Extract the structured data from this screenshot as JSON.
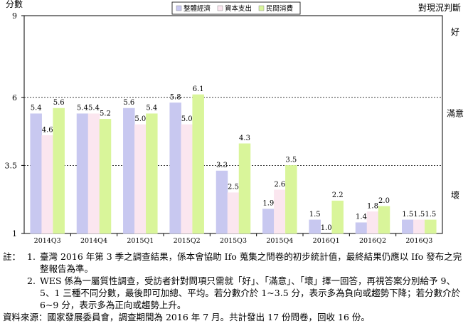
{
  "chart_data": {
    "type": "bar",
    "ylabel": "分數",
    "right_label": "對現況判斷",
    "ylim": [
      1,
      9
    ],
    "yticks": [
      1,
      3.5,
      6,
      9
    ],
    "reference_lines": [
      3.5,
      6
    ],
    "right_axis_labels": [
      {
        "y": 8.4,
        "text": "好"
      },
      {
        "y": 5.4,
        "text": "滿意"
      },
      {
        "y": 2.4,
        "text": "壞"
      }
    ],
    "categories": [
      "2014Q3",
      "2014Q4",
      "2015Q1",
      "2015Q2",
      "2015Q3",
      "2015Q4",
      "2016Q1",
      "2016Q2",
      "2016Q3"
    ],
    "legend_position": "top-center",
    "series": [
      {
        "name": "整體經濟",
        "color": "#c8c8f0",
        "values": [
          5.4,
          5.4,
          5.6,
          5.8,
          3.3,
          1.9,
          1.5,
          1.4,
          1.5
        ],
        "labels": [
          "5.4",
          "5.4",
          "5.6",
          "5.8",
          "3.3",
          "1.9",
          "1.5",
          "1.4",
          "1.5"
        ]
      },
      {
        "name": "資本支出",
        "color": "#fbe6ef",
        "values": [
          4.6,
          5.4,
          5.0,
          5.0,
          2.5,
          2.6,
          1.0,
          1.8,
          1.5
        ],
        "labels": [
          "4.6",
          "5.4",
          "5.0",
          "5.0",
          "2.5",
          "2.6",
          "1.0",
          "1.8",
          "1.5"
        ]
      },
      {
        "name": "民間消費",
        "color": "#d9f59a",
        "values": [
          5.6,
          5.2,
          5.4,
          6.1,
          4.3,
          3.5,
          2.2,
          2.0,
          1.5
        ],
        "labels": [
          "5.6",
          "5.2",
          "5.4",
          "6.1",
          "4.3",
          "3.5",
          "2.2",
          "2.0",
          "1.5"
        ]
      }
    ]
  },
  "notes": {
    "prefix": "註：",
    "items": [
      {
        "num": "1.",
        "text": "臺灣 2016 年第 3 季之調查結果，係本會協助 Ifo 蒐集之問卷的初步統計值，最終結果仍應以 Ifo 發布之完整報告為準。"
      },
      {
        "num": "2.",
        "text": "WES 係為一屬質性調查，受訪者針對問項只需就「好」、「滿意」、「壞」擇一回答，再視答案分別給予 9、5、1 三種不同分數，最後即可加總、平均。若分數介於 1~3.5 分，表示多為負向或趨勢下降；若分數介於 6~9 分，表示多為正向或趨勢上升。"
      }
    ],
    "source": "資料來源：國家發展委員會，調查期間為 2016 年 7 月。共計發出 17 份問卷，回收 16 份。"
  }
}
